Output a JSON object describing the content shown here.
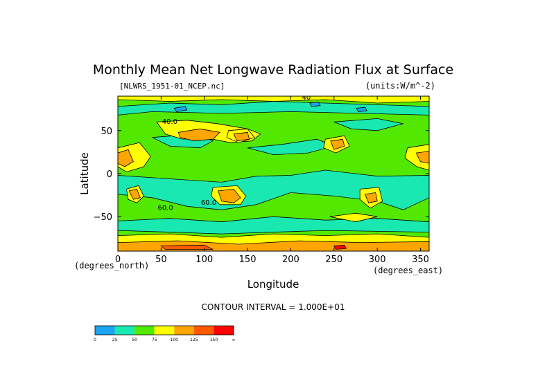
{
  "chart_data": {
    "type": "heatmap",
    "title": "Monthly Mean Net Longwave Radiation Flux at Surface",
    "file_label": "[NLWRS_1951-01_NCEP.nc]",
    "units_label": "(units:W/m^-2)",
    "xlabel": "Longitude",
    "ylabel": "Latitude",
    "x_unit_label": "(degrees_east)",
    "y_unit_label": "(degrees_north)",
    "xlim": [
      0,
      360
    ],
    "ylim": [
      -90,
      90
    ],
    "x_ticks": [
      0,
      50,
      100,
      150,
      200,
      250,
      300,
      350
    ],
    "y_ticks": [
      50,
      0,
      -50
    ],
    "contour_interval_label": "CONTOUR INTERVAL = 1.000E+01",
    "contour_labels": [
      {
        "text": "40.0",
        "x": 60,
        "y": 58
      },
      {
        "text": "60.0",
        "x": 105,
        "y": -36
      },
      {
        "text": "60.0",
        "x": 55,
        "y": -42
      },
      {
        "text": "40",
        "x": 218,
        "y": 86
      }
    ],
    "colorbar": {
      "boundaries": [
        "0",
        "25",
        "50",
        "75",
        "100",
        "125",
        "150",
        "∞"
      ],
      "colors": [
        "#1aa4f2",
        "#19e8b0",
        "#53e800",
        "#ffff00",
        "#ffa500",
        "#ff5a00",
        "#ff0000"
      ]
    },
    "regions": [
      {
        "level": 1,
        "color": "#19e8b0",
        "points": [
          [
            0,
            -2
          ],
          [
            60,
            -6
          ],
          [
            120,
            -10
          ],
          [
            160,
            -3
          ],
          [
            200,
            -2
          ],
          [
            240,
            4
          ],
          [
            300,
            -3
          ],
          [
            360,
            -2
          ],
          [
            360,
            -28
          ],
          [
            330,
            -42
          ],
          [
            300,
            -32
          ],
          [
            250,
            -26
          ],
          [
            200,
            -22
          ],
          [
            160,
            -36
          ],
          [
            120,
            -42
          ],
          [
            80,
            -38
          ],
          [
            40,
            -28
          ],
          [
            0,
            -24
          ]
        ]
      },
      {
        "level": 1,
        "color": "#19e8b0",
        "points": [
          [
            0,
            -55
          ],
          [
            60,
            -52
          ],
          [
            120,
            -56
          ],
          [
            180,
            -50
          ],
          [
            240,
            -54
          ],
          [
            300,
            -52
          ],
          [
            360,
            -56
          ],
          [
            360,
            -68
          ],
          [
            240,
            -66
          ],
          [
            120,
            -70
          ],
          [
            0,
            -66
          ]
        ]
      },
      {
        "level": 1,
        "color": "#19e8b0",
        "points": [
          [
            0,
            78
          ],
          [
            60,
            82
          ],
          [
            120,
            80
          ],
          [
            180,
            84
          ],
          [
            240,
            82
          ],
          [
            300,
            80
          ],
          [
            360,
            78
          ],
          [
            360,
            68
          ],
          [
            280,
            70
          ],
          [
            200,
            72
          ],
          [
            120,
            70
          ],
          [
            40,
            72
          ],
          [
            0,
            68
          ]
        ]
      },
      {
        "level": 1,
        "color": "#19e8b0",
        "points": [
          [
            40,
            42
          ],
          [
            90,
            46
          ],
          [
            110,
            38
          ],
          [
            95,
            30
          ],
          [
            60,
            32
          ]
        ]
      },
      {
        "level": 1,
        "color": "#19e8b0",
        "points": [
          [
            150,
            30
          ],
          [
            190,
            34
          ],
          [
            230,
            40
          ],
          [
            250,
            32
          ],
          [
            220,
            24
          ],
          [
            180,
            22
          ]
        ]
      },
      {
        "level": 1,
        "color": "#19e8b0",
        "points": [
          [
            250,
            60
          ],
          [
            300,
            64
          ],
          [
            330,
            58
          ],
          [
            300,
            50
          ],
          [
            270,
            52
          ]
        ]
      },
      {
        "level": 0,
        "color": "#1aa4f2",
        "points": [
          [
            65,
            76
          ],
          [
            78,
            78
          ],
          [
            80,
            74
          ],
          [
            68,
            72
          ]
        ]
      },
      {
        "level": 0,
        "color": "#1aa4f2",
        "points": [
          [
            222,
            82
          ],
          [
            232,
            83
          ],
          [
            234,
            79
          ],
          [
            224,
            78
          ]
        ]
      },
      {
        "level": 0,
        "color": "#1aa4f2",
        "points": [
          [
            276,
            76
          ],
          [
            286,
            77
          ],
          [
            288,
            73
          ],
          [
            278,
            72
          ]
        ]
      },
      {
        "level": 3,
        "color": "#ffff00",
        "points": [
          [
            45,
            60
          ],
          [
            80,
            62
          ],
          [
            115,
            58
          ],
          [
            150,
            52
          ],
          [
            165,
            46
          ],
          [
            155,
            38
          ],
          [
            130,
            36
          ],
          [
            100,
            42
          ],
          [
            75,
            40
          ],
          [
            55,
            46
          ]
        ]
      },
      {
        "level": 4,
        "color": "#ffa500",
        "points": [
          [
            70,
            48
          ],
          [
            95,
            52
          ],
          [
            118,
            48
          ],
          [
            110,
            40
          ],
          [
            88,
            38
          ],
          [
            72,
            42
          ]
        ]
      },
      {
        "level": 3,
        "color": "#ffff00",
        "points": [
          [
            128,
            50
          ],
          [
            150,
            52
          ],
          [
            158,
            42
          ],
          [
            140,
            36
          ],
          [
            126,
            42
          ]
        ]
      },
      {
        "level": 4,
        "color": "#ffa500",
        "points": [
          [
            134,
            46
          ],
          [
            150,
            48
          ],
          [
            152,
            40
          ],
          [
            138,
            38
          ]
        ]
      },
      {
        "level": 3,
        "color": "#ffff00",
        "points": [
          [
            0,
            30
          ],
          [
            25,
            36
          ],
          [
            38,
            20
          ],
          [
            30,
            8
          ],
          [
            10,
            2
          ],
          [
            0,
            8
          ]
        ]
      },
      {
        "level": 4,
        "color": "#ffa500",
        "points": [
          [
            0,
            24
          ],
          [
            12,
            28
          ],
          [
            18,
            14
          ],
          [
            8,
            8
          ],
          [
            0,
            12
          ]
        ]
      },
      {
        "level": 3,
        "color": "#ffff00",
        "points": [
          [
            10,
            -18
          ],
          [
            24,
            -14
          ],
          [
            30,
            -26
          ],
          [
            22,
            -34
          ],
          [
            12,
            -30
          ]
        ]
      },
      {
        "level": 4,
        "color": "#ffa500",
        "points": [
          [
            13,
            -20
          ],
          [
            22,
            -18
          ],
          [
            26,
            -28
          ],
          [
            18,
            -30
          ]
        ]
      },
      {
        "level": 3,
        "color": "#ffff00",
        "points": [
          [
            110,
            -16
          ],
          [
            138,
            -14
          ],
          [
            148,
            -26
          ],
          [
            142,
            -36
          ],
          [
            118,
            -36
          ],
          [
            108,
            -26
          ]
        ]
      },
      {
        "level": 4,
        "color": "#ffa500",
        "points": [
          [
            116,
            -20
          ],
          [
            134,
            -18
          ],
          [
            142,
            -28
          ],
          [
            134,
            -34
          ],
          [
            120,
            -32
          ]
        ]
      },
      {
        "level": 3,
        "color": "#ffff00",
        "points": [
          [
            240,
            40
          ],
          [
            262,
            44
          ],
          [
            268,
            32
          ],
          [
            252,
            24
          ],
          [
            238,
            30
          ]
        ]
      },
      {
        "level": 4,
        "color": "#ffa500",
        "points": [
          [
            246,
            38
          ],
          [
            260,
            40
          ],
          [
            262,
            32
          ],
          [
            250,
            28
          ]
        ]
      },
      {
        "level": 3,
        "color": "#ffff00",
        "points": [
          [
            280,
            -18
          ],
          [
            302,
            -16
          ],
          [
            306,
            -32
          ],
          [
            292,
            -40
          ],
          [
            280,
            -30
          ]
        ]
      },
      {
        "level": 4,
        "color": "#ffa500",
        "points": [
          [
            286,
            -24
          ],
          [
            298,
            -22
          ],
          [
            300,
            -32
          ],
          [
            290,
            -34
          ]
        ]
      },
      {
        "level": 3,
        "color": "#ffff00",
        "points": [
          [
            335,
            30
          ],
          [
            360,
            34
          ],
          [
            360,
            4
          ],
          [
            346,
            8
          ],
          [
            332,
            18
          ]
        ]
      },
      {
        "level": 4,
        "color": "#ffa500",
        "points": [
          [
            345,
            24
          ],
          [
            360,
            26
          ],
          [
            360,
            12
          ],
          [
            350,
            14
          ]
        ]
      },
      {
        "level": 3,
        "color": "#ffff00",
        "points": [
          [
            245,
            -50
          ],
          [
            275,
            -46
          ],
          [
            300,
            -50
          ],
          [
            275,
            -56
          ]
        ]
      },
      {
        "level": 3,
        "color": "#ffff00",
        "points": [
          [
            0,
            -72
          ],
          [
            60,
            -70
          ],
          [
            120,
            -74
          ],
          [
            180,
            -70
          ],
          [
            240,
            -72
          ],
          [
            300,
            -70
          ],
          [
            360,
            -74
          ],
          [
            360,
            -90
          ],
          [
            0,
            -90
          ]
        ]
      },
      {
        "level": 4,
        "color": "#ffa500",
        "points": [
          [
            0,
            -80
          ],
          [
            70,
            -78
          ],
          [
            140,
            -82
          ],
          [
            210,
            -78
          ],
          [
            280,
            -80
          ],
          [
            360,
            -79
          ],
          [
            360,
            -90
          ],
          [
            0,
            -90
          ]
        ]
      },
      {
        "level": 5,
        "color": "#ff5a00",
        "points": [
          [
            50,
            -84
          ],
          [
            100,
            -83
          ],
          [
            110,
            -88
          ],
          [
            55,
            -88
          ]
        ]
      },
      {
        "level": 6,
        "color": "#ff0000",
        "points": [
          [
            250,
            -84
          ],
          [
            262,
            -83
          ],
          [
            264,
            -87
          ],
          [
            252,
            -88
          ]
        ]
      },
      {
        "level": 3,
        "color": "#ffff00",
        "points": [
          [
            0,
            90
          ],
          [
            360,
            90
          ],
          [
            360,
            84
          ],
          [
            300,
            82
          ],
          [
            240,
            86
          ],
          [
            180,
            84
          ],
          [
            120,
            86
          ],
          [
            60,
            84
          ],
          [
            0,
            86
          ]
        ]
      }
    ]
  }
}
